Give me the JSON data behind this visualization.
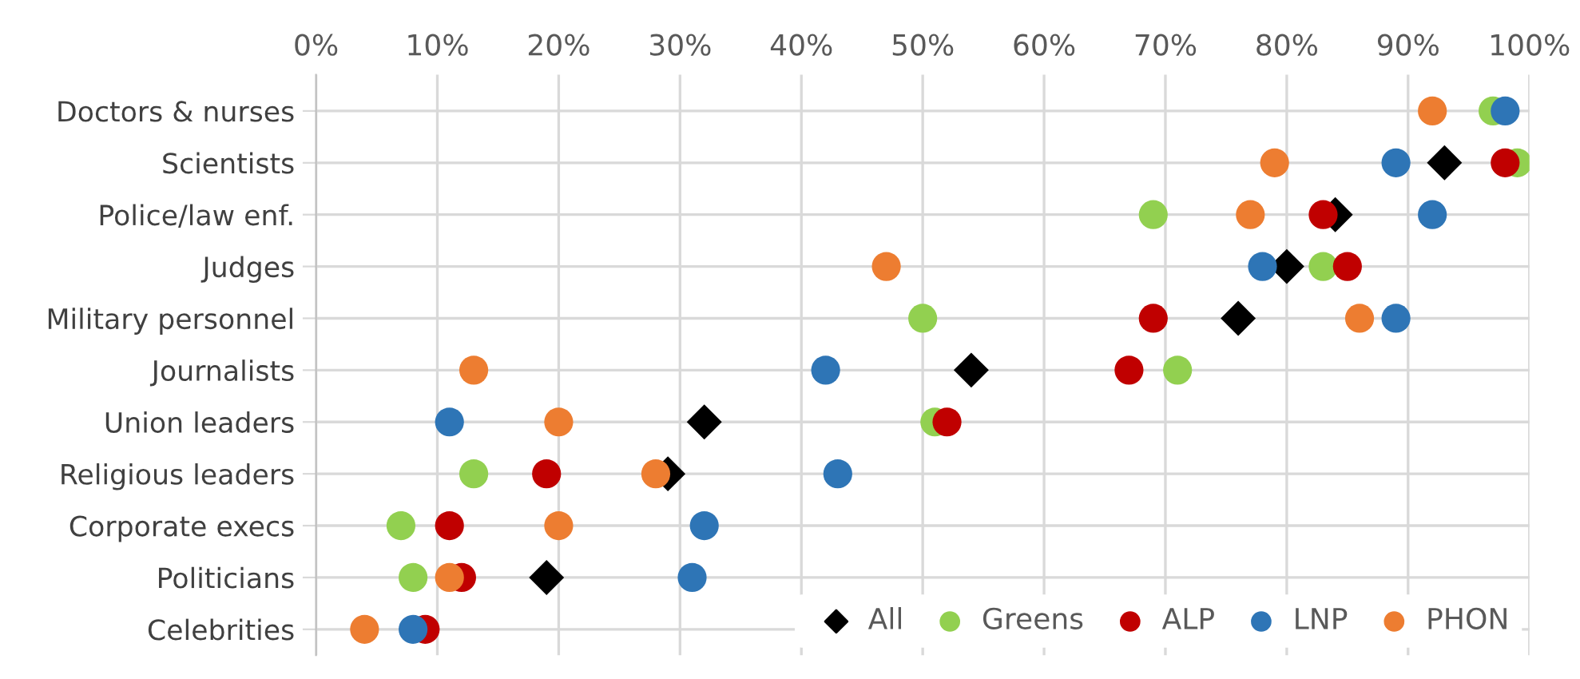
{
  "chart_data": {
    "type": "scatter",
    "orientation": "horizontal",
    "categories": [
      "Doctors & nurses",
      "Scientists",
      "Police/law enf.",
      "Judges",
      "Military personnel",
      "Journalists",
      "Union leaders",
      "Religious leaders",
      "Corporate execs",
      "Politicians",
      "Celebrities"
    ],
    "series": [
      {
        "name": "All",
        "color": "#000000",
        "marker": "diamond",
        "values": [
          null,
          93,
          84,
          80,
          76,
          54,
          32,
          29,
          null,
          19,
          null
        ]
      },
      {
        "name": "Greens",
        "color": "#92d050",
        "marker": "circle",
        "values": [
          97,
          99,
          69,
          83,
          50,
          71,
          51,
          13,
          7,
          8,
          null
        ]
      },
      {
        "name": "ALP",
        "color": "#c00000",
        "marker": "circle",
        "values": [
          null,
          98,
          83,
          85,
          69,
          67,
          52,
          19,
          11,
          12,
          9
        ]
      },
      {
        "name": "LNP",
        "color": "#2e75b6",
        "marker": "circle",
        "values": [
          98,
          89,
          92,
          78,
          89,
          42,
          11,
          43,
          32,
          31,
          8
        ]
      },
      {
        "name": "PHON",
        "color": "#ed7d31",
        "marker": "circle",
        "values": [
          92,
          79,
          77,
          47,
          86,
          13,
          20,
          28,
          20,
          11,
          4
        ]
      }
    ],
    "xlim": [
      0,
      100
    ],
    "xticks": [
      {
        "value": 0,
        "label": "0%"
      },
      {
        "value": 10,
        "label": "10%"
      },
      {
        "value": 20,
        "label": "20%"
      },
      {
        "value": 30,
        "label": "30%"
      },
      {
        "value": 40,
        "label": "40%"
      },
      {
        "value": 50,
        "label": "50%"
      },
      {
        "value": 60,
        "label": "60%"
      },
      {
        "value": 70,
        "label": "70%"
      },
      {
        "value": 80,
        "label": "80%"
      },
      {
        "value": 90,
        "label": "90%"
      },
      {
        "value": 100,
        "label": "100%"
      }
    ],
    "grid": true,
    "legend": "bottom right"
  }
}
